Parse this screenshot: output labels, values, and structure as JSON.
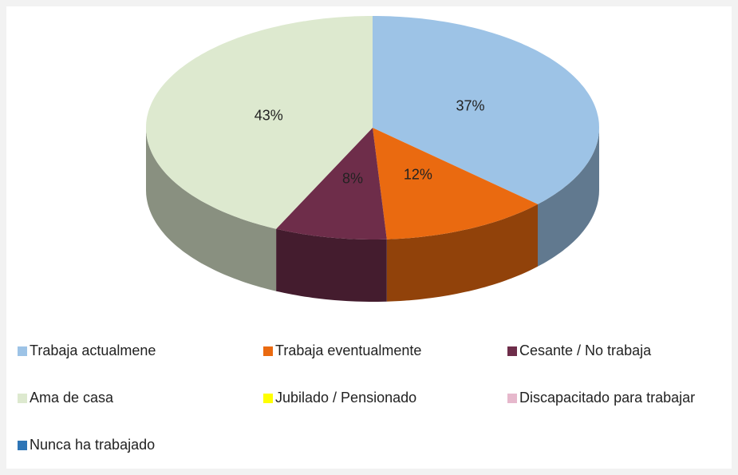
{
  "chart_data": {
    "type": "pie3d",
    "categories": [
      "Trabaja actualmene",
      "Trabaja eventualmente",
      "Cesante / No trabaja",
      "Ama de casa",
      "Jubilado / Pensionado",
      "Discapacitado para trabajar",
      "Nunca ha trabajado"
    ],
    "values": [
      37,
      12,
      8,
      43,
      0,
      0,
      0
    ],
    "value_labels": [
      "37%",
      "12%",
      "8%",
      "43%",
      null,
      null,
      null
    ],
    "colors": [
      "#9dc3e6",
      "#ea6a10",
      "#6e2d4a",
      "#dde9cf",
      "#ffff00",
      "#e6b8cc",
      "#2e75b6"
    ]
  }
}
